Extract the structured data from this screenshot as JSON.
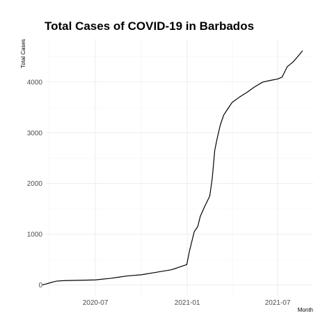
{
  "chart_data": {
    "type": "line",
    "title": "Total Cases of COVID-19 in Barbados",
    "xlabel": "Month",
    "ylabel": "Total Cases",
    "x_ticks": [
      {
        "date": "2020-07-01",
        "label": "2020-07"
      },
      {
        "date": "2021-01-01",
        "label": "2021-01"
      },
      {
        "date": "2021-07-01",
        "label": "2021-07"
      }
    ],
    "y_ticks": [
      0,
      1000,
      2000,
      3000,
      4000
    ],
    "xlim": [
      "2020-03-24",
      "2021-09-10"
    ],
    "ylim": [
      -200,
      4850
    ],
    "grid": true,
    "series": [
      {
        "points": [
          [
            "2020-03-17",
            0
          ],
          [
            "2020-03-25",
            20
          ],
          [
            "2020-04-01",
            40
          ],
          [
            "2020-04-08",
            60
          ],
          [
            "2020-04-15",
            75
          ],
          [
            "2020-05-01",
            85
          ],
          [
            "2020-06-01",
            92
          ],
          [
            "2020-07-01",
            98
          ],
          [
            "2020-08-01",
            130
          ],
          [
            "2020-08-15",
            150
          ],
          [
            "2020-09-01",
            175
          ],
          [
            "2020-10-01",
            200
          ],
          [
            "2020-11-01",
            250
          ],
          [
            "2020-12-01",
            300
          ],
          [
            "2020-12-25",
            380
          ],
          [
            "2020-12-31",
            400
          ],
          [
            "2021-01-05",
            650
          ],
          [
            "2021-01-10",
            850
          ],
          [
            "2021-01-15",
            1050
          ],
          [
            "2021-01-22",
            1150
          ],
          [
            "2021-01-27",
            1350
          ],
          [
            "2021-02-05",
            1550
          ],
          [
            "2021-02-15",
            1750
          ],
          [
            "2021-02-20",
            2100
          ],
          [
            "2021-02-25",
            2650
          ],
          [
            "2021-03-01",
            2850
          ],
          [
            "2021-03-08",
            3150
          ],
          [
            "2021-03-15",
            3350
          ],
          [
            "2021-03-25",
            3500
          ],
          [
            "2021-04-01",
            3600
          ],
          [
            "2021-04-15",
            3700
          ],
          [
            "2021-05-01",
            3800
          ],
          [
            "2021-05-15",
            3900
          ],
          [
            "2021-06-01",
            4000
          ],
          [
            "2021-06-15",
            4030
          ],
          [
            "2021-07-01",
            4060
          ],
          [
            "2021-07-10",
            4100
          ],
          [
            "2021-07-20",
            4300
          ],
          [
            "2021-08-01",
            4400
          ],
          [
            "2021-08-10",
            4500
          ],
          [
            "2021-08-20",
            4620
          ]
        ]
      }
    ]
  }
}
